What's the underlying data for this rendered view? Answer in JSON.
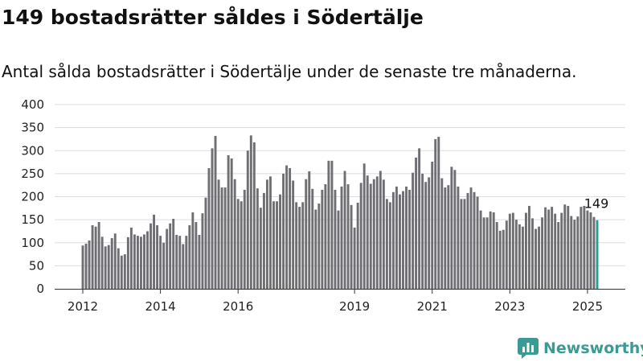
{
  "header": {
    "title": "149 bostadsrätter såldes i Södertälje",
    "subtitle": "Antal sålda bostadsrätter i Södertälje under de senaste tre månaderna."
  },
  "branding": {
    "logo_text": "Newsworthy",
    "logo_icon": "newsworthy-logo-icon",
    "logo_color": "#3b9b94"
  },
  "colors": {
    "bar": "#6e6e73",
    "highlight": "#2a9d8f",
    "grid": "#dddddd",
    "axis": "#333333"
  },
  "chart_data": {
    "type": "bar",
    "title": "",
    "xlabel": "",
    "ylabel": "",
    "ylim": [
      0,
      400
    ],
    "yticks": [
      0,
      50,
      100,
      150,
      200,
      250,
      300,
      350,
      400
    ],
    "grid": true,
    "x_start": "2012-01",
    "x_end": "2025-08",
    "xtick_labels": [
      "2012",
      "2014",
      "2016",
      "2019",
      "2021",
      "2023",
      "2025"
    ],
    "xtick_dates": [
      "2012-01",
      "2014-01",
      "2016-01",
      "2019-01",
      "2021-01",
      "2023-01",
      "2025-01"
    ],
    "highlight_label": "149",
    "values": [
      94,
      98,
      105,
      138,
      135,
      145,
      113,
      92,
      95,
      110,
      120,
      88,
      72,
      75,
      112,
      133,
      118,
      115,
      113,
      118,
      125,
      142,
      161,
      138,
      115,
      100,
      130,
      142,
      152,
      117,
      115,
      97,
      115,
      138,
      166,
      145,
      117,
      164,
      198,
      262,
      305,
      332,
      237,
      220,
      220,
      290,
      283,
      238,
      195,
      190,
      215,
      300,
      333,
      318,
      218,
      176,
      208,
      237,
      244,
      190,
      190,
      205,
      250,
      268,
      262,
      235,
      188,
      178,
      188,
      238,
      255,
      217,
      172,
      185,
      215,
      227,
      278,
      278,
      215,
      170,
      222,
      256,
      227,
      182,
      133,
      187,
      230,
      272,
      246,
      228,
      238,
      244,
      256,
      237,
      195,
      188,
      210,
      222,
      205,
      212,
      222,
      215,
      252,
      285,
      305,
      250,
      232,
      242,
      276,
      325,
      330,
      240,
      220,
      225,
      265,
      258,
      222,
      195,
      195,
      208,
      220,
      210,
      200,
      170,
      155,
      155,
      168,
      166,
      145,
      126,
      128,
      148,
      163,
      165,
      150,
      140,
      135,
      165,
      180,
      153,
      130,
      135,
      155,
      177,
      172,
      178,
      163,
      145,
      165,
      183,
      180,
      158,
      150,
      157,
      178,
      180,
      170,
      166,
      156,
      149
    ]
  }
}
